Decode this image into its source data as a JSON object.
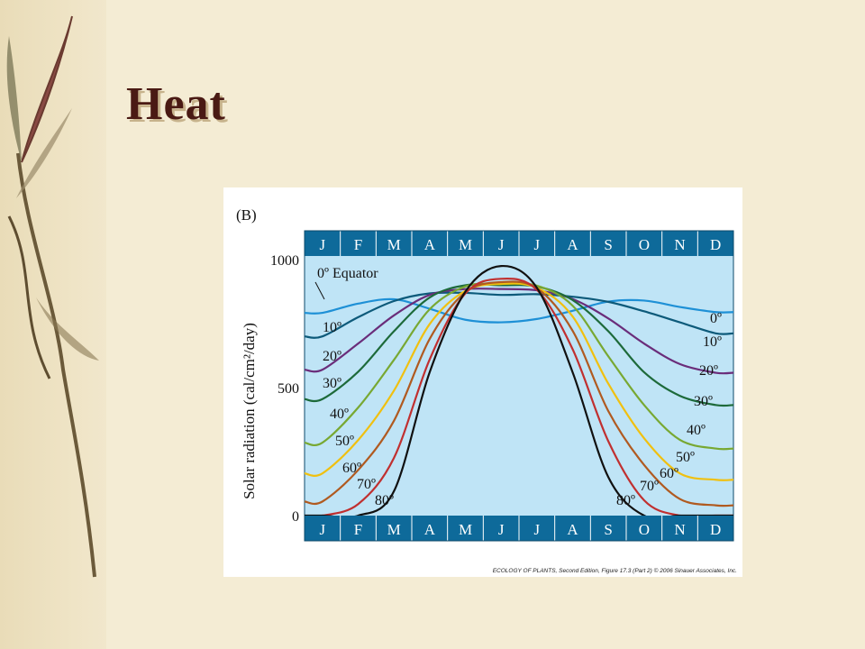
{
  "slide": {
    "title": "Heat"
  },
  "figure": {
    "panel_label": "(B)",
    "caption": "ECOLOGY OF PLANTS, Second Edition, Figure 17.3 (Part 2) © 2006 Sinauer Associates, Inc."
  },
  "chart_data": {
    "type": "line",
    "ylabel": "Solar radiation (cal/cm²/day)",
    "y_ticks": [
      "1000",
      "500",
      "0"
    ],
    "ylim": [
      0,
      1000
    ],
    "x": [
      "J",
      "F",
      "M",
      "A",
      "M",
      "J",
      "J",
      "A",
      "S",
      "O",
      "N",
      "D"
    ],
    "xlabel": "",
    "grid": false,
    "series": [
      {
        "name": "0º Equator",
        "right_label": "0º",
        "color": "#1e90d6",
        "values": [
          792,
          828,
          845,
          808,
          765,
          755,
          768,
          800,
          836,
          840,
          815,
          795
        ]
      },
      {
        "name": "10º",
        "right_label": "10º",
        "color": "#0d5a7a",
        "values": [
          700,
          775,
          838,
          868,
          870,
          862,
          865,
          855,
          835,
          798,
          755,
          712
        ]
      },
      {
        "name": "20º",
        "right_label": "20º",
        "color": "#6a2d7a",
        "values": [
          570,
          672,
          782,
          862,
          885,
          885,
          880,
          846,
          770,
          672,
          592,
          558
        ]
      },
      {
        "name": "30º",
        "right_label": "30º",
        "color": "#1d6a3a",
        "values": [
          455,
          562,
          720,
          852,
          900,
          900,
          895,
          842,
          720,
          560,
          468,
          432
        ]
      },
      {
        "name": "40º",
        "right_label": "40º",
        "color": "#78a832",
        "values": [
          285,
          422,
          608,
          806,
          895,
          905,
          898,
          820,
          622,
          432,
          296,
          262
        ]
      },
      {
        "name": "50º",
        "right_label": "50º",
        "color": "#f0c010",
        "values": [
          165,
          295,
          488,
          748,
          878,
          905,
          890,
          778,
          515,
          302,
          165,
          140
        ]
      },
      {
        "name": "60º",
        "right_label": "60º",
        "color": "#b05a20",
        "values": [
          55,
          178,
          370,
          690,
          872,
          912,
          888,
          722,
          408,
          198,
          65,
          40
        ]
      },
      {
        "name": "70º",
        "right_label": "70º",
        "color": "#c03030",
        "values": [
          0,
          45,
          225,
          610,
          868,
          925,
          882,
          650,
          290,
          60,
          0,
          0
        ]
      },
      {
        "name": "80º",
        "right_label": "80º",
        "color": "#111111",
        "values": [
          0,
          0,
          95,
          560,
          875,
          975,
          890,
          560,
          150,
          0,
          0,
          0
        ]
      }
    ]
  }
}
